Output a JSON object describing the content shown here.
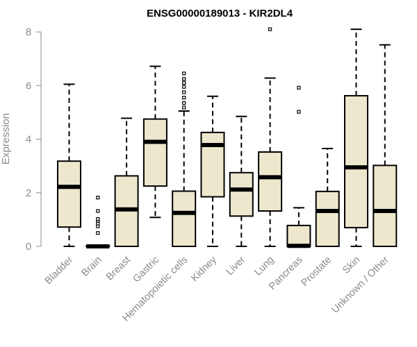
{
  "chart_data": {
    "type": "boxplot",
    "title": "ENSG00000189013 - KIR2DL4",
    "xlabel": "",
    "ylabel": "Expression",
    "ylim": [
      0,
      8.2
    ],
    "yticks": [
      0,
      2,
      4,
      6,
      8
    ],
    "grid": false,
    "colors": {
      "box_fill": "#ede7cd",
      "stroke": "#000000",
      "axis_text": "#8a8a8a"
    },
    "categories": [
      "Bladder",
      "Brain",
      "Breast",
      "Gastric",
      "Hematopoietic cells",
      "Kidney",
      "Liver",
      "Lung",
      "Pancreas",
      "Prostate",
      "Skin",
      "Unknown / Other"
    ],
    "boxes": [
      {
        "min": 0,
        "q1": 0.72,
        "median": 2.22,
        "q3": 3.18,
        "max": 6.05,
        "outliers": []
      },
      {
        "min": 0,
        "q1": 0,
        "median": 0,
        "q3": 0.02,
        "max": 0.04,
        "outliers": [
          0.5,
          0.75,
          0.85,
          0.95,
          1.02,
          1.32,
          1.82
        ]
      },
      {
        "min": 0,
        "q1": 0,
        "median": 1.38,
        "q3": 2.63,
        "max": 4.78,
        "outliers": []
      },
      {
        "min": 1.08,
        "q1": 2.25,
        "median": 3.9,
        "q3": 4.75,
        "max": 6.72,
        "outliers": []
      },
      {
        "min": 0,
        "q1": 0,
        "median": 1.25,
        "q3": 2.06,
        "max": 5.05,
        "outliers": [
          5.18,
          5.35,
          5.55,
          5.75,
          5.95,
          6.1,
          6.25,
          6.45
        ]
      },
      {
        "min": 0,
        "q1": 1.85,
        "median": 3.78,
        "q3": 4.25,
        "max": 5.6,
        "outliers": []
      },
      {
        "min": 0,
        "q1": 1.13,
        "median": 2.12,
        "q3": 2.75,
        "max": 4.85,
        "outliers": []
      },
      {
        "min": 0,
        "q1": 1.32,
        "median": 2.58,
        "q3": 3.52,
        "max": 6.28,
        "outliers": [
          8.1
        ]
      },
      {
        "min": 0,
        "q1": 0,
        "median": 0.02,
        "q3": 0.78,
        "max": 1.44,
        "outliers": [
          5.02,
          5.92
        ]
      },
      {
        "min": 0,
        "q1": 0,
        "median": 1.32,
        "q3": 2.05,
        "max": 3.65,
        "outliers": []
      },
      {
        "min": 0,
        "q1": 0.7,
        "median": 2.95,
        "q3": 5.62,
        "max": 8.1,
        "outliers": []
      },
      {
        "min": 0,
        "q1": 0,
        "median": 1.32,
        "q3": 3.02,
        "max": 7.52,
        "outliers": []
      }
    ]
  }
}
